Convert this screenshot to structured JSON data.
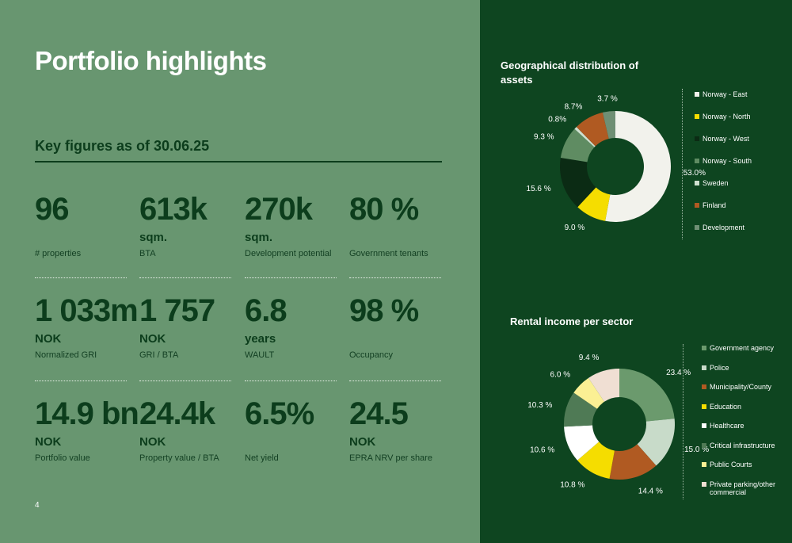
{
  "page": {
    "title": "Portfolio highlights",
    "subtitle": "Key figures as of 30.06.25",
    "page_number": "4"
  },
  "key_figures": [
    {
      "value": "96",
      "unit": "",
      "label": "# properties"
    },
    {
      "value": "613k",
      "unit": "sqm.",
      "label": "BTA"
    },
    {
      "value": "270k",
      "unit": "sqm.",
      "label": "Development potential"
    },
    {
      "value": "80 %",
      "unit": "",
      "label": "Government tenants"
    },
    {
      "value": "1 033m",
      "unit": "NOK",
      "label": "Normalized GRI"
    },
    {
      "value": "1 757",
      "unit": "NOK",
      "label": "GRI / BTA"
    },
    {
      "value": "6.8",
      "unit": "years",
      "label": "WAULT"
    },
    {
      "value": "98 %",
      "unit": "",
      "label": "Occupancy"
    },
    {
      "value": "14.9 bn",
      "unit": "NOK",
      "label": "Portfolio value"
    },
    {
      "value": "24.4k",
      "unit": "NOK",
      "label": "Property value / BTA"
    },
    {
      "value": "6.5%",
      "unit": "",
      "label": "Net yield"
    },
    {
      "value": "24.5",
      "unit": "NOK",
      "label": "EPRA NRV per share"
    }
  ],
  "chart_data": [
    {
      "type": "pie",
      "title": "Geographical distribution of assets",
      "categories": [
        "Norway - East",
        "Norway - North",
        "Norway - West",
        "Norway - South",
        "Sweden",
        "Finland",
        "Development"
      ],
      "values": [
        53.0,
        9.0,
        15.6,
        9.3,
        0.8,
        8.7,
        3.7
      ],
      "value_labels": [
        "53.0%",
        "9.0 %",
        "15.6 %",
        "9.3 %",
        "0.8%",
        "8.7%",
        "3.7 %"
      ],
      "colors": [
        "#f2f2ec",
        "#f5dd00",
        "#0b2b14",
        "#5f8c62",
        "#cfe0cf",
        "#b05a22",
        "#6f8f74"
      ],
      "donut": true
    },
    {
      "type": "pie",
      "title": "Rental income per sector",
      "categories": [
        "Government agency",
        "Police",
        "Municipality/County",
        "Education",
        "Healthcare",
        "Critical infrastructure",
        "Public Courts",
        "Private parking/other commercial"
      ],
      "values": [
        23.4,
        15.0,
        14.4,
        10.8,
        10.6,
        10.3,
        6.0,
        9.4
      ],
      "value_labels": [
        "23.4 %",
        "15.0 %",
        "14.4 %",
        "10.8 %",
        "10.6 %",
        "10.3 %",
        "6.0 %",
        "9.4 %"
      ],
      "colors": [
        "#6b9a6d",
        "#c8dbc9",
        "#b05a22",
        "#f5dd00",
        "#ffffff",
        "#4f7a55",
        "#fbf094",
        "#f0dfd3"
      ],
      "donut": true
    }
  ]
}
